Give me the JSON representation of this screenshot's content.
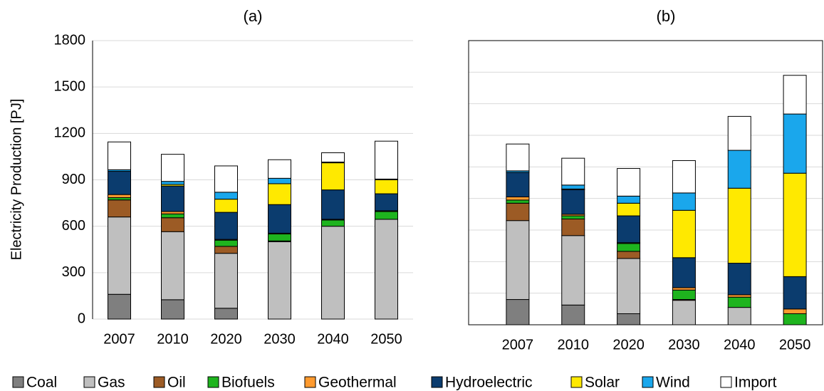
{
  "chart_data": [
    {
      "type": "bar",
      "stacked": true,
      "title": "(a)",
      "y_label": "Electricity Production [PJ]",
      "categories": [
        "2007",
        "2010",
        "2020",
        "2030",
        "2040",
        "2050"
      ],
      "ylim": [
        0,
        1800
      ],
      "yticks": [
        0,
        300,
        600,
        900,
        1200,
        1500,
        1800
      ],
      "tick_labels": true,
      "grid": true,
      "series": [
        {
          "name": "Coal",
          "color": "#7f7f7f",
          "values": [
            160,
            125,
            70,
            0,
            0,
            0
          ]
        },
        {
          "name": "Gas",
          "color": "#bfbfbf",
          "values": [
            500,
            440,
            355,
            500,
            600,
            645
          ]
        },
        {
          "name": "Oil",
          "color": "#9c5b25",
          "values": [
            110,
            90,
            45,
            5,
            0,
            0
          ]
        },
        {
          "name": "Biofuels",
          "color": "#1eb41e",
          "values": [
            15,
            25,
            40,
            45,
            40,
            50
          ]
        },
        {
          "name": "Geothermal",
          "color": "#ff9a2e",
          "values": [
            20,
            15,
            5,
            5,
            5,
            5
          ]
        },
        {
          "name": "Hydroelectric",
          "color": "#0b3c6e",
          "values": [
            150,
            165,
            175,
            185,
            190,
            110
          ]
        },
        {
          "name": "Solar",
          "color": "#ffe900",
          "values": [
            0,
            10,
            85,
            135,
            175,
            90
          ]
        },
        {
          "name": "Wind",
          "color": "#1aa7ec",
          "values": [
            10,
            20,
            45,
            35,
            5,
            5
          ]
        },
        {
          "name": "Import",
          "color": "#ffffff",
          "values": [
            180,
            175,
            170,
            120,
            60,
            245
          ]
        }
      ]
    },
    {
      "type": "bar",
      "stacked": true,
      "title": "(b)",
      "categories": [
        "2007",
        "2010",
        "2020",
        "2030",
        "2040",
        "2050"
      ],
      "ylim": [
        0,
        1800
      ],
      "yticks": [
        0,
        200,
        400,
        600,
        800,
        1000,
        1200,
        1400,
        1600,
        1800
      ],
      "tick_labels": false,
      "grid": true,
      "series": [
        {
          "color": "#7f7f7f",
          "values": [
            160,
            125,
            70,
            0,
            0,
            0
          ]
        },
        {
          "color": "#bfbfbf",
          "values": [
            500,
            440,
            350,
            155,
            110,
            0
          ]
        },
        {
          "color": "#9c5b25",
          "values": [
            110,
            105,
            45,
            5,
            0,
            0
          ]
        },
        {
          "color": "#1eb41e",
          "values": [
            20,
            20,
            50,
            60,
            65,
            70
          ]
        },
        {
          "color": "#ff9a2e",
          "values": [
            20,
            10,
            5,
            15,
            15,
            30
          ]
        },
        {
          "color": "#0b3c6e",
          "values": [
            155,
            155,
            170,
            190,
            200,
            205
          ]
        },
        {
          "color": "#ffe900",
          "values": [
            0,
            5,
            80,
            300,
            475,
            655
          ]
        },
        {
          "color": "#1aa7ec",
          "values": [
            10,
            25,
            45,
            110,
            240,
            375
          ]
        },
        {
          "color": "#ffffff",
          "values": [
            170,
            170,
            175,
            205,
            215,
            245
          ]
        }
      ]
    }
  ]
}
